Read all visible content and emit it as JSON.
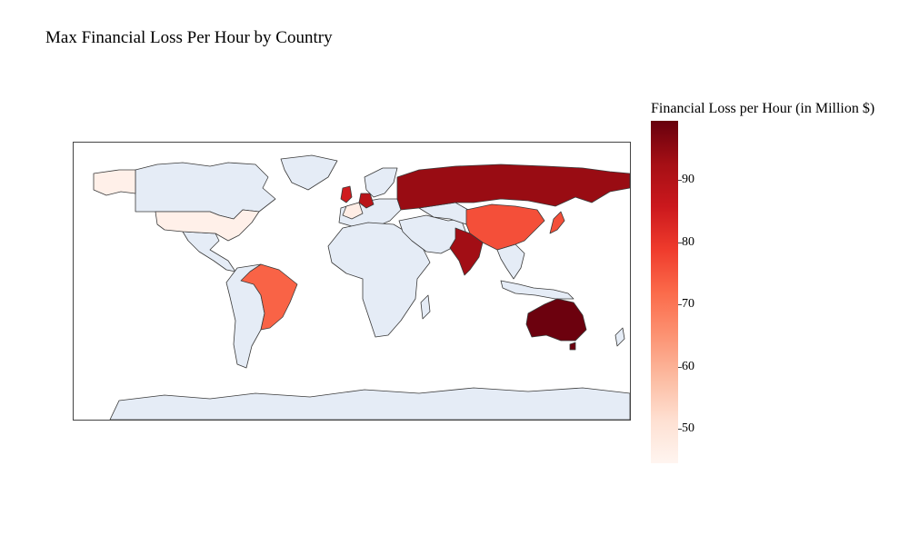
{
  "title": "Max Financial Loss Per Hour by Country",
  "colorbar": {
    "title": "Financial Loss per Hour (in Million $)",
    "min": 44.5,
    "max": 99.5,
    "ticks": [
      "50",
      "60",
      "70",
      "80",
      "90"
    ],
    "colorscale": [
      "#fff5f0",
      "#fee0d2",
      "#fcbba1",
      "#fc9272",
      "#fb6a4a",
      "#ef3b2c",
      "#cb181d",
      "#a50f15",
      "#67000d"
    ]
  },
  "map": {
    "projection": "equirectangular",
    "land_color": "#e5ecf6",
    "border_color": "#3a3a3a"
  },
  "chart_data": {
    "type": "choropleth",
    "title": "Max Financial Loss Per Hour by Country",
    "colorbar_title": "Financial Loss per Hour (in Million $)",
    "colorscale": "Reds",
    "range": [
      44.5,
      99.5
    ],
    "countries": [
      {
        "name": "USA",
        "value": 46
      },
      {
        "name": "France",
        "value": 47
      },
      {
        "name": "Brazil",
        "value": 73
      },
      {
        "name": "China",
        "value": 76
      },
      {
        "name": "Japan",
        "value": 76
      },
      {
        "name": "UK",
        "value": 85
      },
      {
        "name": "Germany",
        "value": 89
      },
      {
        "name": "India",
        "value": 93
      },
      {
        "name": "Russia",
        "value": 94
      },
      {
        "name": "Australia",
        "value": 99
      }
    ]
  }
}
